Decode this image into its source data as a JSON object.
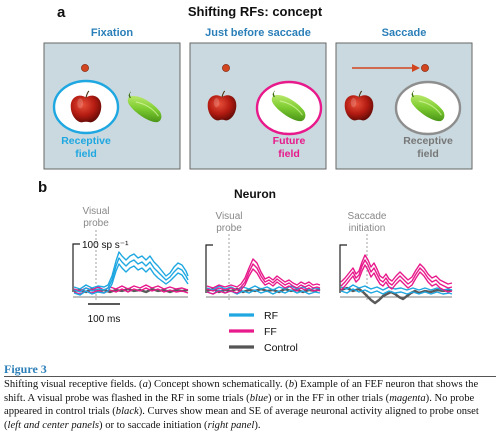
{
  "panel_a": {
    "letter": "a",
    "title": "Shifting RFs: concept",
    "boxes": [
      {
        "title": "Fixation",
        "label_line1": "Receptive",
        "label_line2": "field"
      },
      {
        "title": "Just before saccade",
        "label_line1": "Future",
        "label_line2": "field"
      },
      {
        "title": "Saccade",
        "label_line1": "Receptive",
        "label_line2": "field"
      }
    ]
  },
  "panel_b": {
    "letter": "b",
    "title": "Neuron",
    "event_labels": [
      {
        "line1": "Visual",
        "line2": "probe"
      },
      {
        "line1": "Visual",
        "line2": "probe"
      },
      {
        "line1": "Saccade",
        "line2": "initiation"
      }
    ],
    "scale_y": "100 sp s⁻¹",
    "scale_x": "100 ms",
    "legend": [
      {
        "name": "RF",
        "color": "#1ea7e1"
      },
      {
        "name": "FF",
        "color": "#e8198b"
      },
      {
        "name": "Control",
        "color": "#555555"
      }
    ]
  },
  "colors": {
    "rf_blue": "#1ea7e1",
    "ff_magenta": "#e8198b",
    "grey": "#777777",
    "probe_red": "#d2461f",
    "box_fill": "#c9d9df",
    "title_blue": "#2a7fb8"
  },
  "icons": [
    "apple-icon",
    "pepper-icon",
    "fixation-dot-icon",
    "saccade-arrow-icon"
  ],
  "caption": {
    "title": "Figure 3",
    "s1": "Shifting visual receptive fields. (",
    "a": "a",
    "s2": ") Concept shown schematically. (",
    "b": "b",
    "s3": ") Example of an FEF neuron that shows the shift. A visual probe was flashed in the RF in some trials (",
    "blue": "blue",
    "s4": ") or in the FF in other trials (",
    "magenta": "magenta",
    "s5": "). No probe appeared in control trials (",
    "black": "black",
    "s6": "). Curves show mean and SE of average neuronal activity aligned to probe onset (",
    "lc": "left and center panels",
    "s7": ") or to saccade initiation (",
    "rp": "right panel",
    "s8": ")."
  }
}
